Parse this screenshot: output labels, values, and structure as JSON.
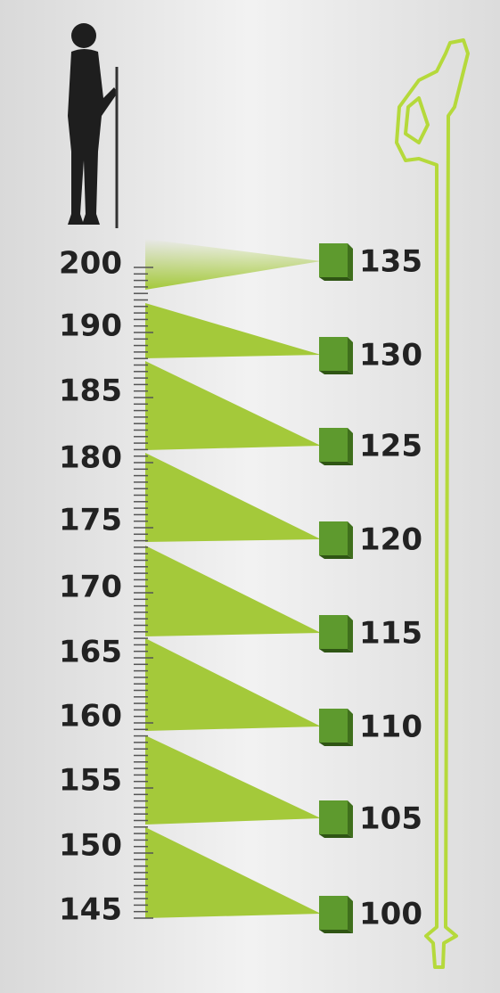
{
  "heights": [
    "200",
    "190",
    "185",
    "180",
    "175",
    "170",
    "165",
    "160",
    "155",
    "150",
    "145"
  ],
  "pole_lengths": [
    "135",
    "130",
    "125",
    "120",
    "115",
    "110",
    "105",
    "100"
  ]
}
